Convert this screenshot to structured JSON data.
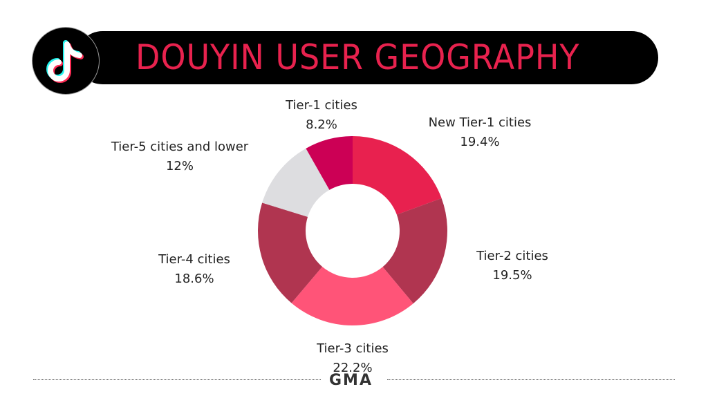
{
  "header": {
    "title": "DOUYIN USER GEOGRAPHY",
    "logo_icon": "tiktok-logo-icon"
  },
  "footer": {
    "brand": "GMA"
  },
  "chart_data": {
    "type": "pie",
    "donut": true,
    "title": "DOUYIN USER GEOGRAPHY",
    "categories": [
      "New Tier-1 cities",
      "Tier-2 cities",
      "Tier-3 cities",
      "Tier-4 cities",
      "Tier-5 cities and lower",
      "Tier-1 cities"
    ],
    "values": [
      19.4,
      19.5,
      22.2,
      18.6,
      12,
      8.2
    ],
    "labels": [
      "19.4%",
      "19.5%",
      "22.2%",
      "18.6%",
      "12%",
      "8.2%"
    ],
    "colors": [
      "#e8214f",
      "#b03550",
      "#ff5478",
      "#b03550",
      "#dddde0",
      "#cc0055"
    ]
  }
}
